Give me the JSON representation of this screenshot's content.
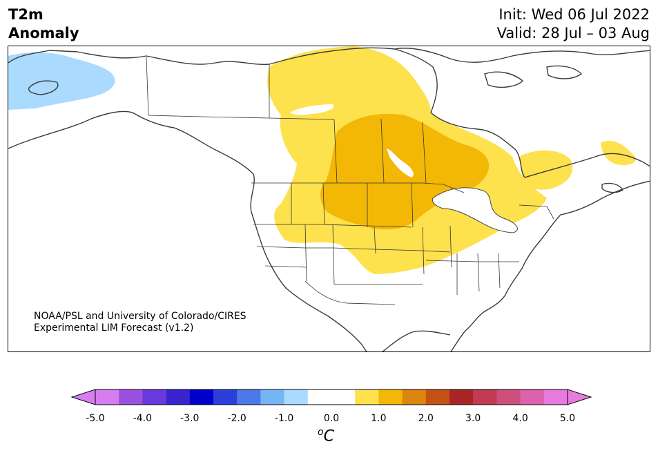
{
  "header": {
    "title_line1": "T2m",
    "title_line2": "Anomaly",
    "init_text": "Init: Wed 06 Jul 2022",
    "valid_text": "Valid: 28 Jul – 03 Aug"
  },
  "credit": {
    "line1": "NOAA/PSL and University of Colorado/CIRES",
    "line2": "Experimental LIM Forecast (v1.2)"
  },
  "map": {
    "region": "North America",
    "anomalies": [
      {
        "region": "Alaska",
        "color": "#aadafe",
        "value_range": "-1.0 to -0.5"
      },
      {
        "region": "Northern Great Plains / central Canada",
        "color": "#f3b706",
        "value_range": "1.0 to 1.5"
      },
      {
        "region": "Great Plains, Midwest, western Canada, Quebec, Labrador",
        "color": "#fde14d",
        "value_range": "0.5 to 1.0"
      }
    ]
  },
  "colorbar": {
    "ticks": [
      "-5.0",
      "-4.0",
      "-3.0",
      "-2.0",
      "-1.0",
      "0.0",
      "1.0",
      "2.0",
      "3.0",
      "4.0",
      "5.0"
    ],
    "unit_sup": "o",
    "unit": "C",
    "colors": [
      "#d67ef0",
      "#9b51e0",
      "#6a39dd",
      "#3a24d0",
      "#0000cd",
      "#2c3fda",
      "#4d78e8",
      "#76b5f4",
      "#aadafe",
      "#ffffff",
      "#ffffff",
      "#fde14d",
      "#f3b706",
      "#dd850f",
      "#c55215",
      "#a92525",
      "#c13c52",
      "#cd4f7b",
      "#dd62ad",
      "#e87bde"
    ],
    "low_extend_color": "#d67ef0",
    "high_extend_color": "#e87bde"
  }
}
